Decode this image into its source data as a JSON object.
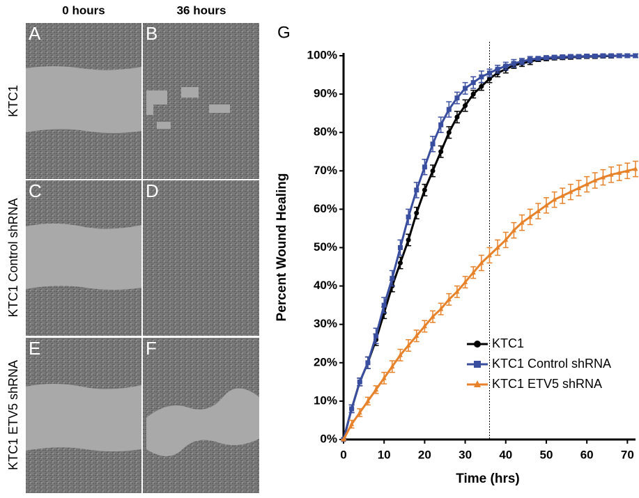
{
  "column_headers": [
    "0 hours",
    "36 hours"
  ],
  "row_labels": [
    "KTC1",
    "KTC1 Control shRNA",
    "KTC1 ETV5 shRNA"
  ],
  "panel_letters": [
    "A",
    "B",
    "C",
    "D",
    "E",
    "F"
  ],
  "chart_data": {
    "type": "line",
    "panel_letter": "G",
    "x_label": "Time (hrs)",
    "y_label": "Percent Wound Healing",
    "x": [
      0,
      2,
      4,
      6,
      8,
      10,
      12,
      14,
      16,
      18,
      20,
      22,
      24,
      26,
      28,
      30,
      32,
      34,
      36,
      38,
      40,
      42,
      44,
      46,
      48,
      50,
      52,
      54,
      56,
      58,
      60,
      62,
      64,
      66,
      68,
      70,
      72
    ],
    "series": [
      {
        "name": "KTC1",
        "color": "#000000",
        "marker": "circle",
        "values": [
          0,
          8,
          15,
          20,
          26,
          33,
          40,
          46,
          52,
          59,
          65,
          70,
          75,
          80,
          84,
          87,
          90,
          92,
          94,
          95.5,
          96.5,
          97.5,
          98,
          98.5,
          99,
          99.2,
          99.4,
          99.5,
          99.6,
          99.7,
          99.8,
          99.8,
          99.9,
          99.9,
          100,
          100,
          100
        ],
        "errors": [
          0,
          1,
          1,
          1.5,
          1.5,
          1.5,
          1.5,
          1.5,
          1.5,
          1.5,
          1.5,
          1.5,
          1.5,
          1.5,
          1.5,
          1.5,
          1,
          1,
          1,
          1,
          1,
          0.8,
          0.8,
          0.8,
          0.5,
          0.5,
          0.5,
          0.5,
          0.5,
          0.5,
          0.5,
          0.5,
          0.5,
          0.5,
          0.5,
          0.5,
          0.5
        ]
      },
      {
        "name": "KTC1 Control shRNA",
        "color": "#3a4ea0",
        "marker": "square",
        "values": [
          0,
          8,
          15,
          20,
          27,
          35,
          42,
          50,
          58,
          65,
          71,
          77,
          82,
          86,
          89,
          91.5,
          93,
          94.5,
          95.5,
          96.5,
          97.3,
          98,
          98.5,
          99,
          99.3,
          99.5,
          99.6,
          99.7,
          99.8,
          99.8,
          99.9,
          99.9,
          100,
          100,
          100,
          100,
          100
        ],
        "errors": [
          0,
          1,
          1,
          1.5,
          2,
          2,
          2,
          2,
          2,
          2,
          2,
          2,
          2,
          2,
          1.5,
          1.5,
          1.5,
          1.5,
          1,
          1,
          1,
          1,
          0.8,
          0.8,
          0.5,
          0.5,
          0.5,
          0.5,
          0.5,
          0.5,
          0.5,
          0.5,
          0.5,
          0.5,
          0.5,
          0.5,
          0.5
        ]
      },
      {
        "name": "KTC1 ETV5 shRNA",
        "color": "#e8822a",
        "marker": "triangle",
        "values": [
          0,
          4,
          7,
          10,
          13,
          16,
          19,
          22,
          24.5,
          27,
          29.5,
          32,
          34,
          36.5,
          38.5,
          41,
          43.5,
          46,
          48,
          50,
          52,
          54.5,
          56.5,
          58,
          59.5,
          61,
          62.5,
          63.5,
          64.5,
          65.5,
          66.5,
          67.5,
          68.3,
          69,
          69.5,
          70,
          70.5
        ],
        "errors": [
          0,
          1,
          1,
          1,
          1,
          1.5,
          1.5,
          1.5,
          1.5,
          1.5,
          1.5,
          1.5,
          1.5,
          1.5,
          1.5,
          1.5,
          1.5,
          2,
          2,
          2,
          2,
          2,
          2,
          2,
          2,
          2,
          2,
          2,
          2,
          2,
          2,
          2,
          2,
          2,
          2,
          2,
          2
        ]
      }
    ],
    "xlim": [
      0,
      72
    ],
    "xticks": [
      0,
      10,
      20,
      30,
      40,
      50,
      60,
      70
    ],
    "ylim": [
      0,
      100
    ],
    "yticks": [
      {
        "value": 0,
        "label": "0%"
      },
      {
        "value": 10,
        "label": "10%"
      },
      {
        "value": 20,
        "label": "20%"
      },
      {
        "value": 30,
        "label": "30%"
      },
      {
        "value": 40,
        "label": "40%"
      },
      {
        "value": 50,
        "label": "50%"
      },
      {
        "value": 60,
        "label": "60%"
      },
      {
        "value": 70,
        "label": "70%"
      },
      {
        "value": 80,
        "label": "80%"
      },
      {
        "value": 90,
        "label": "90%"
      },
      {
        "value": 100,
        "label": "100%"
      }
    ],
    "reference_x": 36,
    "legend": "lower right",
    "grid": false
  }
}
